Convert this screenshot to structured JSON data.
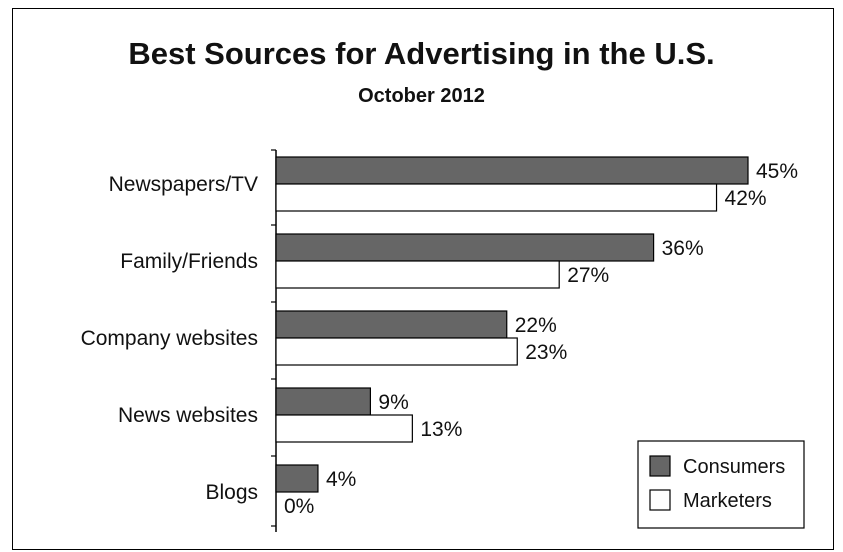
{
  "chart_data": {
    "type": "bar",
    "orientation": "horizontal",
    "title": "Best Sources for Advertising in the U.S.",
    "subtitle": "October 2012",
    "categories": [
      "Newspapers/TV",
      "Family/Friends",
      "Company websites",
      "News websites",
      "Blogs"
    ],
    "series": [
      {
        "name": "Consumers",
        "values": [
          45,
          36,
          22,
          9,
          4
        ],
        "labels": [
          "45%",
          "36%",
          "22%",
          "9%",
          "4%"
        ],
        "color": "#666666"
      },
      {
        "name": "Marketers",
        "values": [
          42,
          27,
          23,
          13,
          0
        ],
        "labels": [
          "42%",
          "27%",
          "23%",
          "13%",
          "0%"
        ],
        "color": "#ffffff"
      }
    ],
    "xlim": [
      0,
      50
    ],
    "grid": false,
    "legend_position": "bottom-right"
  }
}
